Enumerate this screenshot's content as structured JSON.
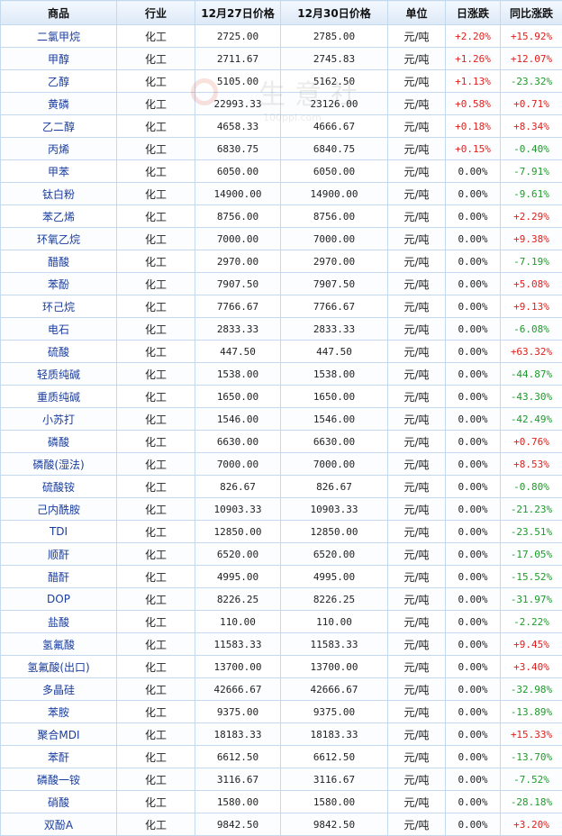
{
  "columns": [
    "商品",
    "行业",
    "12月27日价格",
    "12月30日价格",
    "单位",
    "日涨跌",
    "同比涨跌"
  ],
  "watermark": {
    "text": "生意社",
    "url": "100ppi.com"
  },
  "colors": {
    "up": "#e0201c",
    "down": "#1e9b2a",
    "name_link": "#1a3d9e",
    "border": "#c4d8ee",
    "header_bg": "#dde9f7"
  },
  "rows": [
    {
      "name": "二氯甲烷",
      "industry": "化工",
      "price1": "2725.00",
      "price2": "2785.00",
      "unit": "元/吨",
      "daily": "+2.20%",
      "yoy": "+15.92%"
    },
    {
      "name": "甲醇",
      "industry": "化工",
      "price1": "2711.67",
      "price2": "2745.83",
      "unit": "元/吨",
      "daily": "+1.26%",
      "yoy": "+12.07%"
    },
    {
      "name": "乙醇",
      "industry": "化工",
      "price1": "5105.00",
      "price2": "5162.50",
      "unit": "元/吨",
      "daily": "+1.13%",
      "yoy": "-23.32%"
    },
    {
      "name": "黄磷",
      "industry": "化工",
      "price1": "22993.33",
      "price2": "23126.00",
      "unit": "元/吨",
      "daily": "+0.58%",
      "yoy": "+0.71%"
    },
    {
      "name": "乙二醇",
      "industry": "化工",
      "price1": "4658.33",
      "price2": "4666.67",
      "unit": "元/吨",
      "daily": "+0.18%",
      "yoy": "+8.34%"
    },
    {
      "name": "丙烯",
      "industry": "化工",
      "price1": "6830.75",
      "price2": "6840.75",
      "unit": "元/吨",
      "daily": "+0.15%",
      "yoy": "-0.40%"
    },
    {
      "name": "甲苯",
      "industry": "化工",
      "price1": "6050.00",
      "price2": "6050.00",
      "unit": "元/吨",
      "daily": "0.00%",
      "yoy": "-7.91%"
    },
    {
      "name": "钛白粉",
      "industry": "化工",
      "price1": "14900.00",
      "price2": "14900.00",
      "unit": "元/吨",
      "daily": "0.00%",
      "yoy": "-9.61%"
    },
    {
      "name": "苯乙烯",
      "industry": "化工",
      "price1": "8756.00",
      "price2": "8756.00",
      "unit": "元/吨",
      "daily": "0.00%",
      "yoy": "+2.29%"
    },
    {
      "name": "环氧乙烷",
      "industry": "化工",
      "price1": "7000.00",
      "price2": "7000.00",
      "unit": "元/吨",
      "daily": "0.00%",
      "yoy": "+9.38%"
    },
    {
      "name": "醋酸",
      "industry": "化工",
      "price1": "2970.00",
      "price2": "2970.00",
      "unit": "元/吨",
      "daily": "0.00%",
      "yoy": "-7.19%"
    },
    {
      "name": "苯酚",
      "industry": "化工",
      "price1": "7907.50",
      "price2": "7907.50",
      "unit": "元/吨",
      "daily": "0.00%",
      "yoy": "+5.08%"
    },
    {
      "name": "环己烷",
      "industry": "化工",
      "price1": "7766.67",
      "price2": "7766.67",
      "unit": "元/吨",
      "daily": "0.00%",
      "yoy": "+9.13%"
    },
    {
      "name": "电石",
      "industry": "化工",
      "price1": "2833.33",
      "price2": "2833.33",
      "unit": "元/吨",
      "daily": "0.00%",
      "yoy": "-6.08%"
    },
    {
      "name": "硫酸",
      "industry": "化工",
      "price1": "447.50",
      "price2": "447.50",
      "unit": "元/吨",
      "daily": "0.00%",
      "yoy": "+63.32%"
    },
    {
      "name": "轻质纯碱",
      "industry": "化工",
      "price1": "1538.00",
      "price2": "1538.00",
      "unit": "元/吨",
      "daily": "0.00%",
      "yoy": "-44.87%"
    },
    {
      "name": "重质纯碱",
      "industry": "化工",
      "price1": "1650.00",
      "price2": "1650.00",
      "unit": "元/吨",
      "daily": "0.00%",
      "yoy": "-43.30%"
    },
    {
      "name": "小苏打",
      "industry": "化工",
      "price1": "1546.00",
      "price2": "1546.00",
      "unit": "元/吨",
      "daily": "0.00%",
      "yoy": "-42.49%"
    },
    {
      "name": "磷酸",
      "industry": "化工",
      "price1": "6630.00",
      "price2": "6630.00",
      "unit": "元/吨",
      "daily": "0.00%",
      "yoy": "+0.76%"
    },
    {
      "name": "磷酸(湿法)",
      "industry": "化工",
      "price1": "7000.00",
      "price2": "7000.00",
      "unit": "元/吨",
      "daily": "0.00%",
      "yoy": "+8.53%"
    },
    {
      "name": "硫酸铵",
      "industry": "化工",
      "price1": "826.67",
      "price2": "826.67",
      "unit": "元/吨",
      "daily": "0.00%",
      "yoy": "-0.80%"
    },
    {
      "name": "己内酰胺",
      "industry": "化工",
      "price1": "10903.33",
      "price2": "10903.33",
      "unit": "元/吨",
      "daily": "0.00%",
      "yoy": "-21.23%"
    },
    {
      "name": "TDI",
      "industry": "化工",
      "price1": "12850.00",
      "price2": "12850.00",
      "unit": "元/吨",
      "daily": "0.00%",
      "yoy": "-23.51%"
    },
    {
      "name": "顺酐",
      "industry": "化工",
      "price1": "6520.00",
      "price2": "6520.00",
      "unit": "元/吨",
      "daily": "0.00%",
      "yoy": "-17.05%"
    },
    {
      "name": "醋酐",
      "industry": "化工",
      "price1": "4995.00",
      "price2": "4995.00",
      "unit": "元/吨",
      "daily": "0.00%",
      "yoy": "-15.52%"
    },
    {
      "name": "DOP",
      "industry": "化工",
      "price1": "8226.25",
      "price2": "8226.25",
      "unit": "元/吨",
      "daily": "0.00%",
      "yoy": "-31.97%"
    },
    {
      "name": "盐酸",
      "industry": "化工",
      "price1": "110.00",
      "price2": "110.00",
      "unit": "元/吨",
      "daily": "0.00%",
      "yoy": "-2.22%"
    },
    {
      "name": "氢氟酸",
      "industry": "化工",
      "price1": "11583.33",
      "price2": "11583.33",
      "unit": "元/吨",
      "daily": "0.00%",
      "yoy": "+9.45%"
    },
    {
      "name": "氢氟酸(出口)",
      "industry": "化工",
      "price1": "13700.00",
      "price2": "13700.00",
      "unit": "元/吨",
      "daily": "0.00%",
      "yoy": "+3.40%"
    },
    {
      "name": "多晶硅",
      "industry": "化工",
      "price1": "42666.67",
      "price2": "42666.67",
      "unit": "元/吨",
      "daily": "0.00%",
      "yoy": "-32.98%"
    },
    {
      "name": "苯胺",
      "industry": "化工",
      "price1": "9375.00",
      "price2": "9375.00",
      "unit": "元/吨",
      "daily": "0.00%",
      "yoy": "-13.89%"
    },
    {
      "name": "聚合MDI",
      "industry": "化工",
      "price1": "18183.33",
      "price2": "18183.33",
      "unit": "元/吨",
      "daily": "0.00%",
      "yoy": "+15.33%"
    },
    {
      "name": "苯酐",
      "industry": "化工",
      "price1": "6612.50",
      "price2": "6612.50",
      "unit": "元/吨",
      "daily": "0.00%",
      "yoy": "-13.70%"
    },
    {
      "name": "磷酸一铵",
      "industry": "化工",
      "price1": "3116.67",
      "price2": "3116.67",
      "unit": "元/吨",
      "daily": "0.00%",
      "yoy": "-7.52%"
    },
    {
      "name": "硝酸",
      "industry": "化工",
      "price1": "1580.00",
      "price2": "1580.00",
      "unit": "元/吨",
      "daily": "0.00%",
      "yoy": "-28.18%"
    },
    {
      "name": "双酚A",
      "industry": "化工",
      "price1": "9842.50",
      "price2": "9842.50",
      "unit": "元/吨",
      "daily": "0.00%",
      "yoy": "+3.20%"
    }
  ]
}
